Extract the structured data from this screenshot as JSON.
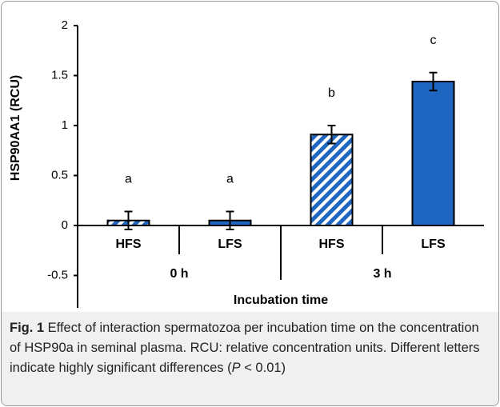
{
  "chart_data": {
    "type": "bar",
    "ylabel": "HSP90AA1 (RCU)",
    "xlabel": "Incubation time",
    "categories": [
      "HFS",
      "LFS",
      "HFS",
      "LFS"
    ],
    "groups": [
      "0 h",
      "3 h"
    ],
    "values": [
      0.05,
      0.05,
      0.91,
      1.44
    ],
    "errors": [
      0.09,
      0.09,
      0.09,
      0.09
    ],
    "annotations": [
      "a",
      "a",
      "b",
      "c"
    ],
    "color": "#1f66c0",
    "hatched": [
      true,
      false,
      true,
      false
    ],
    "ylim": [
      -0.8,
      2
    ],
    "yticks": [
      -0.5,
      0,
      0.5,
      1,
      1.5,
      2
    ]
  },
  "caption": {
    "label": "Fig. 1",
    "text": " Effect of interaction spermatozoa per incubation time on the concentration of HSP90a in seminal plasma. RCU: relative concentration units. Different letters indicate highly significant differences (",
    "italic": "P",
    "end": " < 0.01)"
  }
}
